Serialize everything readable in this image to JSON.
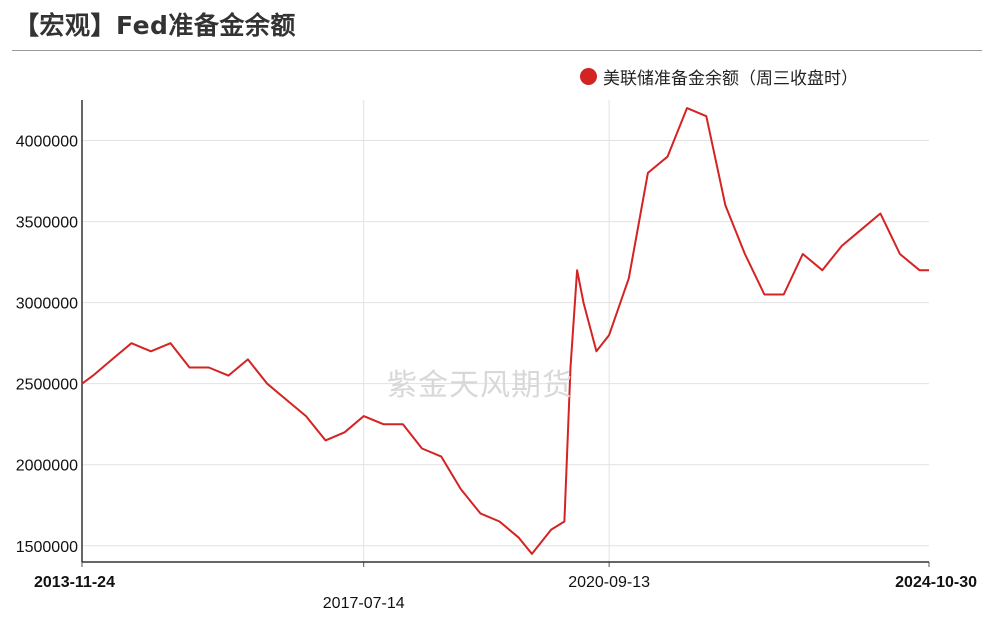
{
  "header": {
    "title": "【宏观】Fed准备金余额"
  },
  "watermark": "紫金天风期货",
  "chart_data": {
    "type": "line",
    "title": "",
    "xlabel": "",
    "ylabel": "",
    "ylim": [
      1400000,
      4250000
    ],
    "yticks": [
      "1500000",
      "2000000",
      "2500000",
      "3000000",
      "3500000",
      "4000000"
    ],
    "xticks": [
      {
        "label": "2013-11-24",
        "bold": true
      },
      {
        "label": "2017-07-14",
        "bold": false
      },
      {
        "label": "2020-09-13",
        "bold": false
      },
      {
        "label": "2024-10-30",
        "bold": true
      }
    ],
    "legend": {
      "position": "top-right"
    },
    "series": [
      {
        "name": "美联储准备金余额（周三收盘时）",
        "color": "#d42323",
        "x": [
          "2013-11-24",
          "2014-01-15",
          "2014-04-15",
          "2014-07-15",
          "2014-10-15",
          "2015-01-15",
          "2015-04-15",
          "2015-07-15",
          "2015-10-15",
          "2016-01-15",
          "2016-04-15",
          "2016-07-15",
          "2016-10-15",
          "2017-01-15",
          "2017-04-15",
          "2017-07-14",
          "2017-10-15",
          "2018-01-15",
          "2018-04-15",
          "2018-07-15",
          "2018-10-15",
          "2019-01-15",
          "2019-04-15",
          "2019-07-15",
          "2019-09-15",
          "2019-12-15",
          "2020-02-15",
          "2020-03-15",
          "2020-04-15",
          "2020-05-15",
          "2020-07-15",
          "2020-09-13",
          "2020-12-15",
          "2021-03-15",
          "2021-06-15",
          "2021-09-15",
          "2021-12-15",
          "2022-03-15",
          "2022-06-15",
          "2022-09-15",
          "2022-12-15",
          "2023-03-15",
          "2023-06-15",
          "2023-09-15",
          "2023-12-15",
          "2024-03-15",
          "2024-06-15",
          "2024-09-15",
          "2024-10-30"
        ],
        "values": [
          2500000,
          2550000,
          2650000,
          2750000,
          2700000,
          2750000,
          2600000,
          2600000,
          2550000,
          2650000,
          2500000,
          2400000,
          2300000,
          2150000,
          2200000,
          2300000,
          2250000,
          2250000,
          2100000,
          2050000,
          1850000,
          1700000,
          1650000,
          1550000,
          1450000,
          1600000,
          1650000,
          2600000,
          3200000,
          3000000,
          2700000,
          2800000,
          3150000,
          3800000,
          3900000,
          4200000,
          4150000,
          3600000,
          3300000,
          3050000,
          3050000,
          3300000,
          3200000,
          3350000,
          3450000,
          3550000,
          3300000,
          3200000,
          3200000
        ]
      }
    ]
  }
}
